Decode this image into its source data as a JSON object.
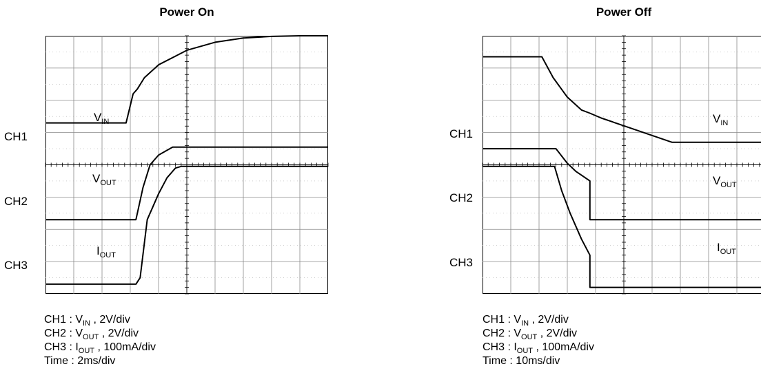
{
  "panels": [
    {
      "title": "Power On",
      "ch_labels": [
        "CH1",
        "CH2",
        "CH3"
      ],
      "trace_labels": [
        {
          "main": "V",
          "sub": "IN"
        },
        {
          "main": "V",
          "sub": "OUT"
        },
        {
          "main": "I",
          "sub": "OUT"
        }
      ],
      "legend": [
        {
          "prefix": "CH1 : ",
          "main": "V",
          "sub": "IN",
          "rest": " , 2V/div"
        },
        {
          "prefix": "CH2 : ",
          "main": "V",
          "sub": "OUT",
          "rest": " , 2V/div"
        },
        {
          "prefix": "CH3 : ",
          "main": "I",
          "sub": "OUT",
          "rest": " , 100mA/div"
        },
        {
          "prefix": "Time : 2ms/div",
          "main": "",
          "sub": "",
          "rest": ""
        }
      ]
    },
    {
      "title": "Power Off",
      "ch_labels": [
        "CH1",
        "CH2",
        "CH3"
      ],
      "trace_labels": [
        {
          "main": "V",
          "sub": "IN"
        },
        {
          "main": "V",
          "sub": "OUT"
        },
        {
          "main": "I",
          "sub": "OUT"
        }
      ],
      "legend": [
        {
          "prefix": "CH1 : ",
          "main": "V",
          "sub": "IN",
          "rest": " , 2V/div"
        },
        {
          "prefix": "CH2 : ",
          "main": "V",
          "sub": "OUT",
          "rest": " , 2V/div"
        },
        {
          "prefix": "CH3 : ",
          "main": "I",
          "sub": "OUT",
          "rest": " , 100mA/div"
        },
        {
          "prefix": "Time : 10ms/div",
          "main": "",
          "sub": "",
          "rest": ""
        }
      ]
    }
  ],
  "chart_data": [
    {
      "type": "line",
      "title": "Power On",
      "xunit": "div",
      "yunit": "div",
      "xlim": [
        0,
        10
      ],
      "ylim": [
        0,
        8
      ],
      "grid": true,
      "series": [
        {
          "name": "VIN",
          "x": [
            0,
            2.85,
            3.1,
            3.25,
            3.5,
            4.0,
            5.0,
            6.0,
            7.0,
            8.0,
            9.0,
            10.0
          ],
          "y": [
            5.3,
            5.3,
            6.2,
            6.35,
            6.7,
            7.1,
            7.55,
            7.8,
            7.93,
            7.98,
            8.0,
            8.0
          ]
        },
        {
          "name": "VOUT",
          "x": [
            0,
            3.2,
            3.45,
            3.7,
            4.0,
            4.3,
            4.5,
            5.0,
            10.0
          ],
          "y": [
            2.3,
            2.3,
            3.3,
            4.0,
            4.3,
            4.45,
            4.55,
            4.55,
            4.55
          ]
        },
        {
          "name": "IOUT",
          "x": [
            0,
            3.2,
            3.35,
            3.6,
            4.0,
            4.3,
            4.6,
            4.8,
            10.0
          ],
          "y": [
            0.3,
            0.3,
            0.5,
            2.3,
            3.1,
            3.6,
            3.9,
            3.95,
            3.95
          ]
        }
      ]
    },
    {
      "type": "line",
      "title": "Power Off",
      "xunit": "div",
      "yunit": "div",
      "xlim": [
        0,
        10
      ],
      "ylim": [
        0,
        8
      ],
      "grid": true,
      "series": [
        {
          "name": "VIN",
          "x": [
            0,
            2.1,
            2.5,
            3.0,
            3.5,
            3.8,
            4.2,
            6.7,
            10.0
          ],
          "y": [
            7.35,
            7.35,
            6.7,
            6.1,
            5.7,
            5.6,
            5.45,
            4.7,
            4.7
          ]
        },
        {
          "name": "VOUT",
          "x": [
            0,
            2.6,
            3.0,
            3.3,
            3.8,
            3.8,
            10.0
          ],
          "y": [
            4.5,
            4.5,
            4.05,
            3.8,
            3.5,
            2.3,
            2.3
          ]
        },
        {
          "name": "IOUT",
          "x": [
            0,
            2.55,
            2.8,
            3.1,
            3.5,
            3.8,
            3.8,
            10.0
          ],
          "y": [
            3.95,
            3.95,
            3.2,
            2.5,
            1.7,
            1.2,
            0.2,
            0.2
          ]
        }
      ]
    }
  ]
}
